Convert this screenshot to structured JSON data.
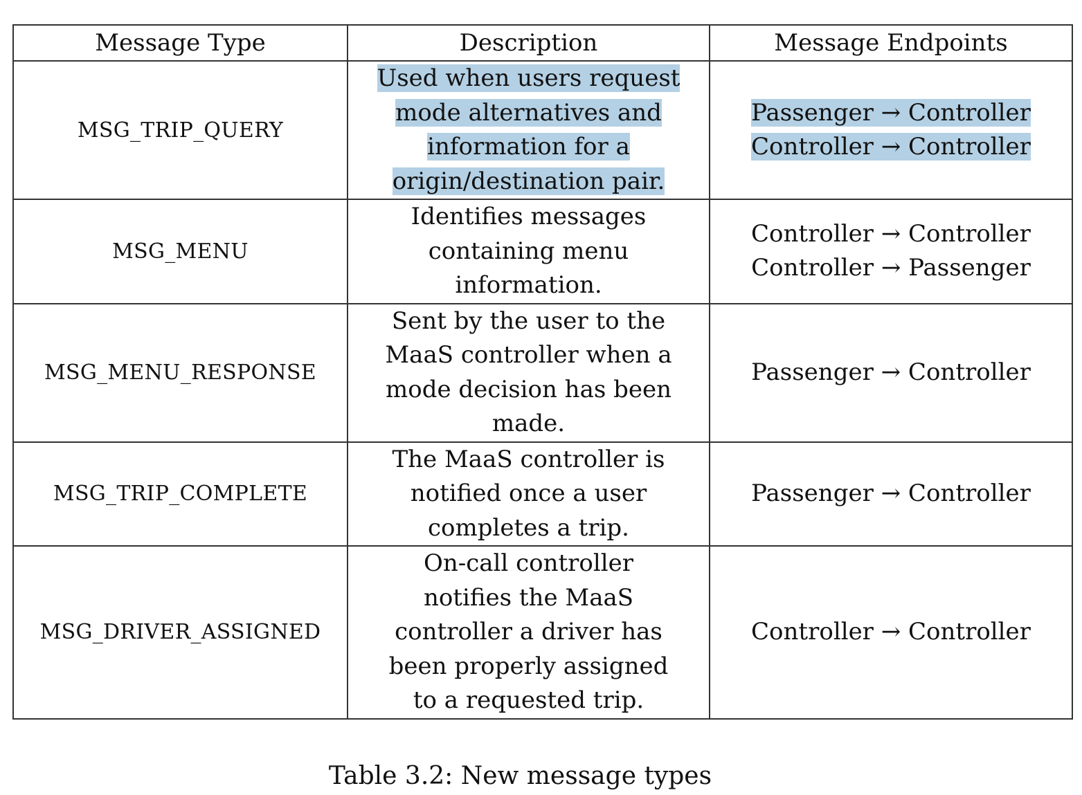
{
  "table": {
    "headers": [
      "Message Type",
      "Description",
      "Message Endpoints"
    ],
    "rows": [
      {
        "type": "MSG_TRIP_QUERY",
        "description": "Used when users request mode alternatives and information for a origin/destination pair.",
        "endpoints": [
          "Passenger → Controller",
          "Controller → Controller"
        ]
      },
      {
        "type": "MSG_MENU",
        "description": "Identifies messages containing menu information.",
        "endpoints": [
          "Controller → Controller",
          "Controller → Passenger"
        ]
      },
      {
        "type": "MSG_MENU_RESPONSE",
        "description": "Sent by the user to the MaaS controller when a mode decision has been made.",
        "endpoints": [
          "Passenger → Controller"
        ]
      },
      {
        "type": "MSG_TRIP_COMPLETE",
        "description": "The MaaS controller is notified once a user completes a trip.",
        "endpoints": [
          "Passenger → Controller"
        ]
      },
      {
        "type": "MSG_DRIVER_ASSIGNED",
        "description": "On-call controller notifies the MaaS controller a driver has been properly assigned to a requested trip.",
        "endpoints": [
          "Controller → Controller"
        ]
      }
    ]
  },
  "caption": "Table 3.2: New message types",
  "colors": {
    "text_selection_highlight": "#b4d0e4",
    "border": "#333333"
  }
}
